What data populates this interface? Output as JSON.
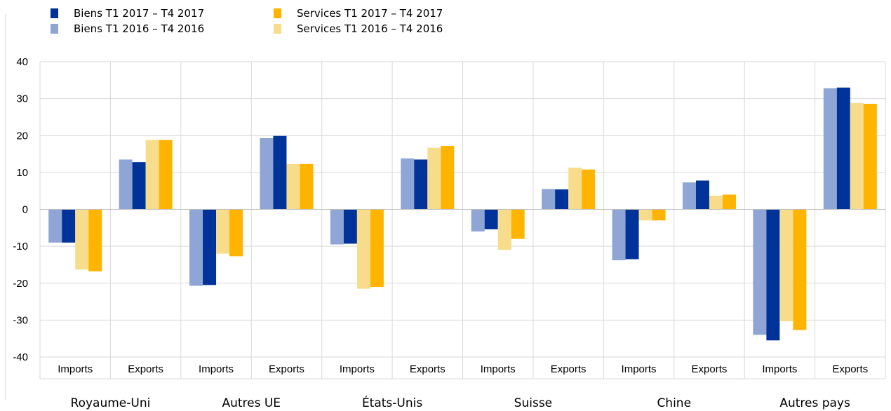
{
  "chart_data": {
    "type": "bar",
    "ylim": [
      -40,
      40
    ],
    "yticks": [
      40,
      30,
      20,
      10,
      0,
      -10,
      -20,
      -30,
      -40
    ],
    "grid": true,
    "legend_placement": "top-left",
    "groups": [
      "Royaume-Uni",
      "Autres UE",
      "États-Unis",
      "Suisse",
      "Chine",
      "Autres pays"
    ],
    "subcategories": [
      "Imports",
      "Exports"
    ],
    "series": [
      {
        "name": "Biens T1 2016 – T4 2016",
        "color": "#8fa5d6",
        "values": [
          -9,
          13.5,
          -20.7,
          19.3,
          -9.5,
          13.8,
          -6,
          5.5,
          -13.8,
          7.3,
          -34,
          32.8
        ]
      },
      {
        "name": "Biens T1 2017 – T4 2017",
        "color": "#003399",
        "values": [
          -9,
          12.8,
          -20.5,
          19.9,
          -9.3,
          13.5,
          -5.4,
          5.4,
          -13.5,
          7.8,
          -35.5,
          33
        ]
      },
      {
        "name": "Services T1 2016 – T4 2016",
        "color": "#f7dc8c",
        "values": [
          -16.3,
          18.8,
          -12,
          12.3,
          -21.5,
          16.7,
          -11,
          11.3,
          -3,
          3.7,
          -30.3,
          28.8
        ]
      },
      {
        "name": "Services T1 2017 – T4 2017",
        "color": "#ffb400",
        "values": [
          -16.8,
          18.8,
          -12.7,
          12.3,
          -21,
          17.2,
          -8,
          10.8,
          -3,
          4,
          -32.7,
          28.6
        ]
      }
    ],
    "legend": [
      {
        "label": "Biens T1 2017 – T4 2017",
        "color": "#003399"
      },
      {
        "label": "Biens T1 2016 – T4 2016",
        "color": "#8fa5d6"
      },
      {
        "label": "Services T1 2017 – T4 2017",
        "color": "#ffb400"
      },
      {
        "label": "Services T1 2016 – T4 2016",
        "color": "#f7dc8c"
      }
    ]
  }
}
